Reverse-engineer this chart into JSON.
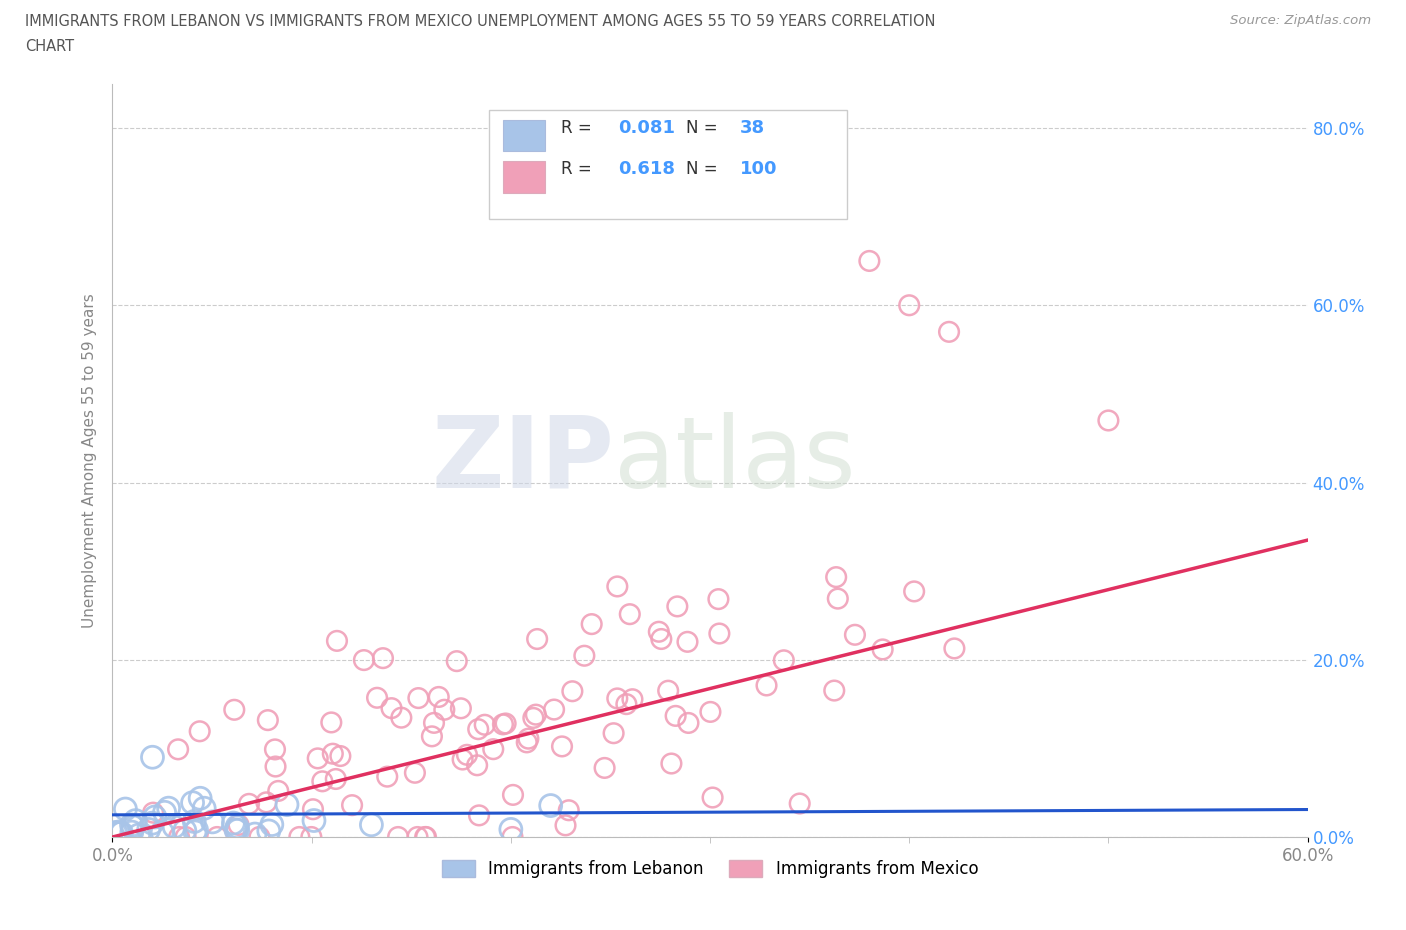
{
  "title_line1": "IMMIGRANTS FROM LEBANON VS IMMIGRANTS FROM MEXICO UNEMPLOYMENT AMONG AGES 55 TO 59 YEARS CORRELATION",
  "title_line2": "CHART",
  "source": "Source: ZipAtlas.com",
  "ylabel_label": "Unemployment Among Ages 55 to 59 years",
  "legend_labels": [
    "Immigrants from Lebanon",
    "Immigrants from Mexico"
  ],
  "watermark_zip": "ZIP",
  "watermark_atlas": "atlas",
  "lebanon_R": 0.081,
  "lebanon_N": 38,
  "mexico_R": 0.618,
  "mexico_N": 100,
  "lebanon_color": "#a8c4e8",
  "mexico_color": "#f0a0b8",
  "lebanon_trend_color": "#2255cc",
  "mexico_trend_color": "#e03060",
  "title_color": "#555555",
  "source_color": "#999999",
  "right_tick_color": "#4499ff",
  "background_color": "#ffffff",
  "grid_color": "#cccccc",
  "axis_color": "#bbbbbb",
  "label_color": "#888888",
  "xmin": 0.0,
  "xmax": 0.6,
  "ymin": 0.0,
  "ymax": 0.85
}
